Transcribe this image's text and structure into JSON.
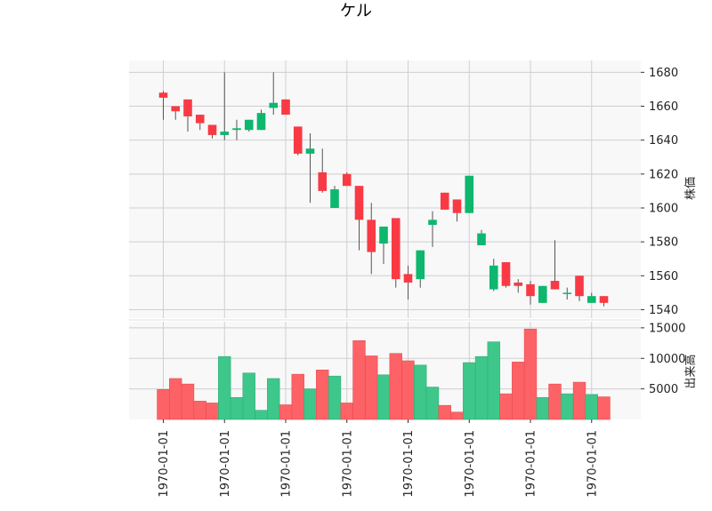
{
  "chart_data": {
    "type": "candlestick",
    "title": "ケル",
    "colors": {
      "up": "#0db76e",
      "down": "#f93a44",
      "volume_up": "#3ec78a",
      "volume_down": "#fd6366",
      "wick": "#555555",
      "grid": "#cfcfcf",
      "panel": "#f8f8f8"
    },
    "price_panel": {
      "ylabel": "株価",
      "ylim": [
        1535,
        1687
      ],
      "yticks": [
        1540,
        1560,
        1580,
        1600,
        1620,
        1640,
        1660,
        1680
      ]
    },
    "volume_panel": {
      "ylabel": "出来高",
      "ylim": [
        0,
        16000
      ],
      "yticks": [
        5000,
        10000,
        15000
      ]
    },
    "x_tick_labels": [
      "1970-01-01",
      "1970-01-01",
      "1970-01-01",
      "1970-01-01",
      "1970-01-01",
      "1970-01-01",
      "1970-01-01",
      "1970-01-01"
    ],
    "x_tick_indices": [
      0,
      5,
      10,
      15,
      20,
      25,
      30,
      35
    ],
    "candles": [
      {
        "o": 1668,
        "h": 1669,
        "l": 1652,
        "c": 1665
      },
      {
        "o": 1660,
        "h": 1660,
        "l": 1652,
        "c": 1657
      },
      {
        "o": 1664,
        "h": 1664,
        "l": 1645,
        "c": 1654
      },
      {
        "o": 1655,
        "h": 1655,
        "l": 1646,
        "c": 1650
      },
      {
        "o": 1649,
        "h": 1649,
        "l": 1641,
        "c": 1643
      },
      {
        "o": 1643,
        "h": 1680,
        "l": 1640,
        "c": 1645
      },
      {
        "o": 1646,
        "h": 1652,
        "l": 1640,
        "c": 1647
      },
      {
        "o": 1646,
        "h": 1652,
        "l": 1645,
        "c": 1652
      },
      {
        "o": 1646,
        "h": 1658,
        "l": 1646,
        "c": 1656
      },
      {
        "o": 1659,
        "h": 1680,
        "l": 1655,
        "c": 1662
      },
      {
        "o": 1664,
        "h": 1664,
        "l": 1655,
        "c": 1655
      },
      {
        "o": 1648,
        "h": 1648,
        "l": 1631,
        "c": 1632
      },
      {
        "o": 1632,
        "h": 1644,
        "l": 1603,
        "c": 1635
      },
      {
        "o": 1621,
        "h": 1635,
        "l": 1609,
        "c": 1610
      },
      {
        "o": 1600,
        "h": 1613,
        "l": 1600,
        "c": 1611
      },
      {
        "o": 1620,
        "h": 1621,
        "l": 1613,
        "c": 1613
      },
      {
        "o": 1613,
        "h": 1613,
        "l": 1575,
        "c": 1593
      },
      {
        "o": 1593,
        "h": 1603,
        "l": 1561,
        "c": 1574
      },
      {
        "o": 1579,
        "h": 1589,
        "l": 1567,
        "c": 1589
      },
      {
        "o": 1594,
        "h": 1594,
        "l": 1553,
        "c": 1558
      },
      {
        "o": 1561,
        "h": 1566,
        "l": 1546,
        "c": 1556
      },
      {
        "o": 1558,
        "h": 1575,
        "l": 1553,
        "c": 1575
      },
      {
        "o": 1590,
        "h": 1598,
        "l": 1577,
        "c": 1593
      },
      {
        "o": 1609,
        "h": 1609,
        "l": 1599,
        "c": 1599
      },
      {
        "o": 1605,
        "h": 1605,
        "l": 1592,
        "c": 1597
      },
      {
        "o": 1597,
        "h": 1619,
        "l": 1597,
        "c": 1619
      },
      {
        "o": 1578,
        "h": 1587,
        "l": 1578,
        "c": 1585
      },
      {
        "o": 1552,
        "h": 1570,
        "l": 1551,
        "c": 1566
      },
      {
        "o": 1568,
        "h": 1568,
        "l": 1553,
        "c": 1554
      },
      {
        "o": 1556,
        "h": 1558,
        "l": 1550,
        "c": 1554
      },
      {
        "o": 1555,
        "h": 1557,
        "l": 1543,
        "c": 1548
      },
      {
        "o": 1544,
        "h": 1554,
        "l": 1544,
        "c": 1554
      },
      {
        "o": 1557,
        "h": 1581,
        "l": 1552,
        "c": 1552
      },
      {
        "o": 1550,
        "h": 1553,
        "l": 1546,
        "c": 1550
      },
      {
        "o": 1560,
        "h": 1560,
        "l": 1545,
        "c": 1548
      },
      {
        "o": 1544,
        "h": 1550,
        "l": 1544,
        "c": 1548
      },
      {
        "o": 1548,
        "h": 1548,
        "l": 1542,
        "c": 1544
      }
    ],
    "volume": [
      4900,
      6700,
      5800,
      3000,
      2700,
      10300,
      3600,
      7600,
      1500,
      6700,
      2400,
      7400,
      5000,
      8100,
      7100,
      2700,
      12900,
      10400,
      7300,
      10800,
      9600,
      8900,
      5300,
      2300,
      1200,
      9300,
      10300,
      12700,
      4200,
      9400,
      14800,
      3600,
      5800,
      4200,
      6100,
      4100,
      3700
    ]
  }
}
